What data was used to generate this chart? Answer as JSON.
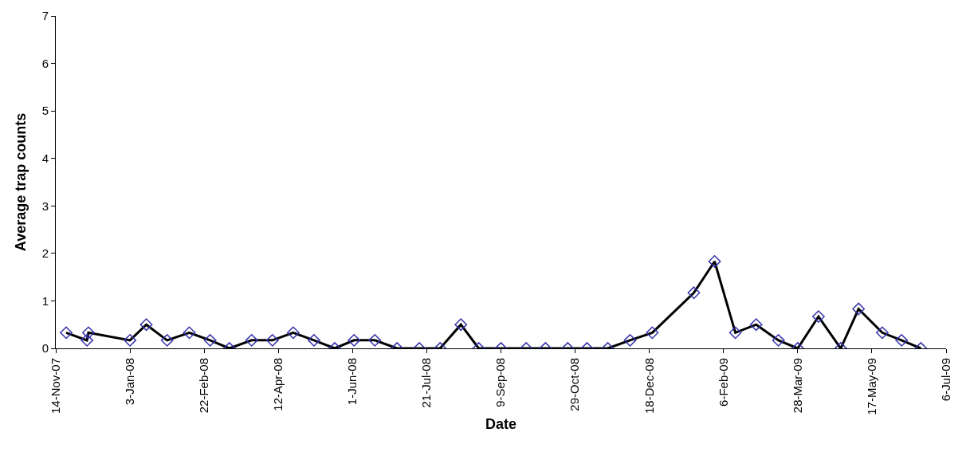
{
  "chart_data": {
    "type": "line",
    "xlabel": "Date",
    "ylabel": "Average trap counts",
    "x": [
      "2007-11-21",
      "2007-12-05",
      "2007-12-06",
      "2008-01-03",
      "2008-01-14",
      "2008-01-28",
      "2008-02-12",
      "2008-02-26",
      "2008-03-10",
      "2008-03-25",
      "2008-04-08",
      "2008-04-22",
      "2008-05-06",
      "2008-05-20",
      "2008-06-02",
      "2008-06-16",
      "2008-07-01",
      "2008-07-16",
      "2008-07-30",
      "2008-08-13",
      "2008-08-25",
      "2008-09-09",
      "2008-09-26",
      "2008-10-09",
      "2008-10-24",
      "2008-11-06",
      "2008-11-20",
      "2008-12-05",
      "2008-12-20",
      "2009-01-17",
      "2009-01-31",
      "2009-02-14",
      "2009-02-28",
      "2009-03-15",
      "2009-03-28",
      "2009-04-11",
      "2009-04-26",
      "2009-05-08",
      "2009-05-24",
      "2009-06-06",
      "2009-06-19"
    ],
    "series": [
      {
        "color": "#000000",
        "values": [
          0.33,
          0.17,
          0.33,
          0.17,
          0.5,
          0.17,
          0.33,
          0.17,
          0,
          0.17,
          0.17,
          0.33,
          0.17,
          0,
          0.17,
          0.17,
          0,
          0,
          0,
          0.5,
          0,
          0,
          0,
          0,
          0,
          0,
          0,
          0.17,
          0.33,
          1.17,
          1.83,
          0.33,
          0.5,
          0.17,
          0,
          0.67,
          0,
          0.83,
          0.33,
          0.17,
          0
        ]
      }
    ],
    "xlim": [
      "2007-11-14",
      "2009-07-06"
    ],
    "xticks": [
      {
        "value": "2007-11-14",
        "label": "14-Nov-07"
      },
      {
        "value": "2008-01-03",
        "label": "3-Jan-08"
      },
      {
        "value": "2008-02-22",
        "label": "22-Feb-08"
      },
      {
        "value": "2008-04-12",
        "label": "12-Apr-08"
      },
      {
        "value": "2008-06-01",
        "label": "1-Jun-08"
      },
      {
        "value": "2008-07-21",
        "label": "21-Jul-08"
      },
      {
        "value": "2008-09-09",
        "label": "9-Sep-08"
      },
      {
        "value": "2008-10-29",
        "label": "29-Oct-08"
      },
      {
        "value": "2008-12-18",
        "label": "18-Dec-08"
      },
      {
        "value": "2009-02-06",
        "label": "6-Feb-09"
      },
      {
        "value": "2009-03-28",
        "label": "28-Mar-09"
      },
      {
        "value": "2009-05-17",
        "label": "17-May-09"
      },
      {
        "value": "2009-07-06",
        "label": "6-Jul-09"
      }
    ],
    "ylim": [
      0,
      7
    ],
    "yticks": [
      0,
      1,
      2,
      3,
      4,
      5,
      6,
      7
    ],
    "marker": "diamond",
    "line_style": "solid"
  }
}
